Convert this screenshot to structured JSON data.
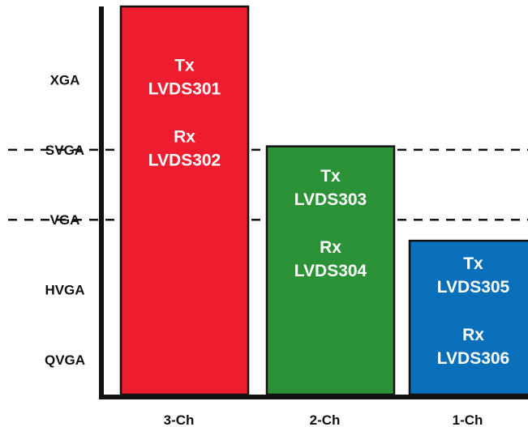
{
  "chart_data": {
    "type": "bar",
    "categories": [
      "3-Ch",
      "2-Ch",
      "1-Ch"
    ],
    "y_levels": [
      "QVGA",
      "HVGA",
      "VGA",
      "SVGA",
      "XGA"
    ],
    "ylim": [
      0,
      5.55
    ],
    "values": [
      5.55,
      3.55,
      2.2
    ],
    "colors": [
      "#ed1c2e",
      "#2b9237",
      "#0a6fba"
    ],
    "bar_labels": [
      [
        "Tx",
        "LVDS301",
        "Rx",
        "LVDS302"
      ],
      [
        "Tx",
        "LVDS303",
        "Rx",
        "LVDS304"
      ],
      [
        "Tx",
        "LVDS305",
        "Rx",
        "LVDS306"
      ]
    ],
    "reference_lines": [
      2.5,
      3.5
    ],
    "grid": false,
    "legend": "none"
  }
}
